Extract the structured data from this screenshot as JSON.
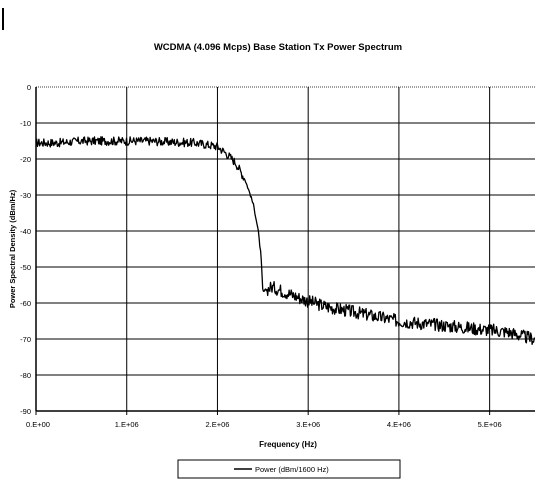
{
  "chart_data": {
    "type": "line",
    "title": "WCDMA (4.096 Mcps) Base Station Tx Power Spectrum",
    "xlabel": "Frequency (Hz)",
    "ylabel": "Power Spectral Density (dBm/Hz)",
    "xlim": [
      0,
      5500000
    ],
    "ylim": [
      -90,
      0
    ],
    "x_ticks": [
      {
        "value": 0,
        "label": "0.E+00"
      },
      {
        "value": 1000000,
        "label": "1.E+06"
      },
      {
        "value": 2000000,
        "label": "2.E+06"
      },
      {
        "value": 3000000,
        "label": "3.E+06"
      },
      {
        "value": 4000000,
        "label": "4.E+06"
      },
      {
        "value": 5000000,
        "label": "5.E+06"
      }
    ],
    "y_ticks": [
      {
        "value": 0,
        "label": "0"
      },
      {
        "value": -10,
        "label": "-10"
      },
      {
        "value": -20,
        "label": "-20"
      },
      {
        "value": -30,
        "label": "-30"
      },
      {
        "value": -40,
        "label": "-40"
      },
      {
        "value": -50,
        "label": "-50"
      },
      {
        "value": -60,
        "label": "-60"
      },
      {
        "value": -70,
        "label": "-70"
      },
      {
        "value": -80,
        "label": "-80"
      },
      {
        "value": -90,
        "label": "-90"
      }
    ],
    "grid": true,
    "legend_position": "bottom",
    "series": [
      {
        "name": "Power (dBm/1600 Hz)",
        "color": "#000000",
        "x": [
          0,
          250000,
          500000,
          750000,
          1000000,
          1250000,
          1500000,
          1750000,
          2000000,
          2100000,
          2200000,
          2300000,
          2350000,
          2400000,
          2450000,
          2480000,
          2500000,
          2530000,
          2600000,
          2700000,
          2850000,
          3000000,
          3200000,
          3400000,
          3600000,
          3800000,
          4000000,
          4200000,
          4400000,
          4600000,
          4800000,
          5000000,
          5200000,
          5400000,
          5500000
        ],
        "y": [
          -15.5,
          -15.5,
          -15.0,
          -15.0,
          -15.0,
          -15.0,
          -15.3,
          -15.5,
          -16.5,
          -18.5,
          -21.0,
          -25.5,
          -29.0,
          -33.0,
          -40.0,
          -47.0,
          -57.0,
          -56.5,
          -55.5,
          -56.5,
          -58.0,
          -59.5,
          -61.0,
          -62.0,
          -63.0,
          -64.0,
          -65.0,
          -65.5,
          -66.0,
          -66.5,
          -67.0,
          -67.5,
          -68.0,
          -69.5,
          -70.0
        ]
      }
    ]
  }
}
